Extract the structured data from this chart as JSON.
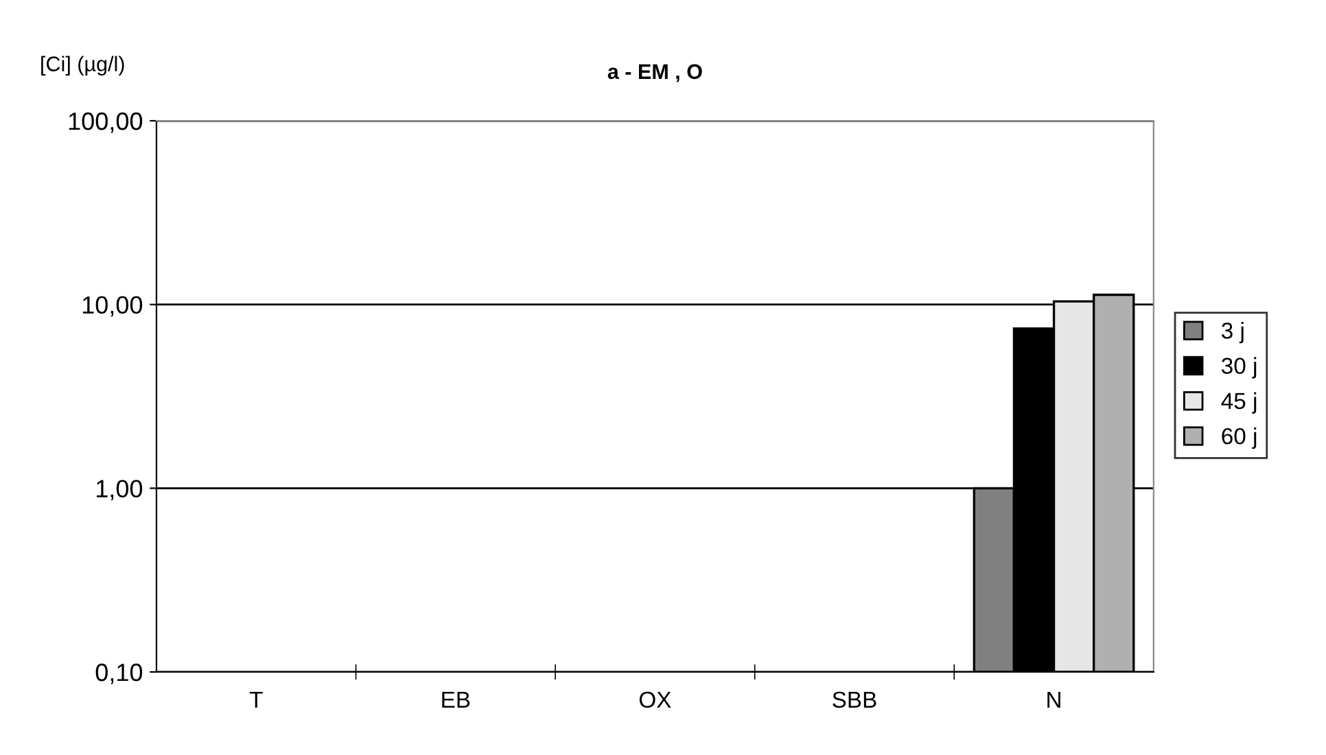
{
  "chart_data": {
    "type": "bar",
    "title": "a - EM , O",
    "ylabel": "[Ci] (µg/l)",
    "categories": [
      "T",
      "EB",
      "OX",
      "SBB",
      "N"
    ],
    "series": [
      {
        "name": "3 j",
        "color": "#808080",
        "values": [
          null,
          null,
          null,
          null,
          1.0
        ]
      },
      {
        "name": "30 j",
        "color": "#000000",
        "values": [
          null,
          null,
          null,
          null,
          7.4
        ]
      },
      {
        "name": "45 j",
        "color": "#e6e6e6",
        "values": [
          null,
          null,
          null,
          null,
          10.4
        ]
      },
      {
        "name": "60 j",
        "color": "#b0b0b0",
        "values": [
          null,
          null,
          null,
          null,
          11.3
        ]
      }
    ],
    "log": true,
    "ylim": [
      0.1,
      100
    ],
    "yticks": [
      {
        "value": 0.1,
        "label": "0,10"
      },
      {
        "value": 1,
        "label": "1,00"
      },
      {
        "value": 10,
        "label": "10,00"
      },
      {
        "value": 100,
        "label": "100,00"
      }
    ],
    "grid": "y",
    "legend": "right"
  }
}
